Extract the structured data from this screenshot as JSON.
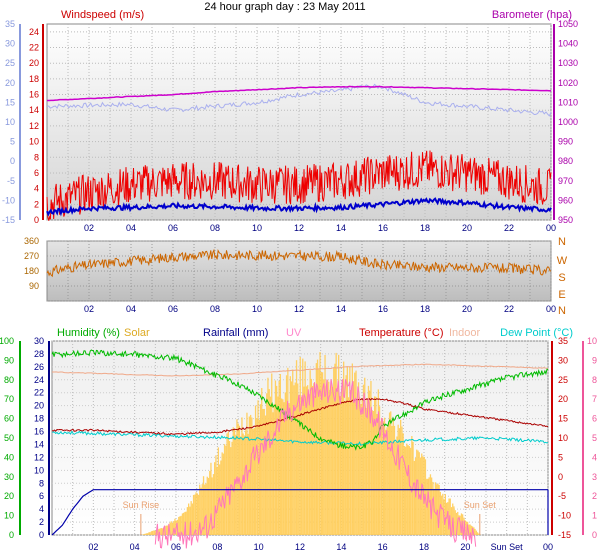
{
  "title": "24 hour graph day : 23 May 2011",
  "chart_data": [
    {
      "panel": "wind-pressure",
      "type": "line",
      "x_tick_labels": [
        "02",
        "04",
        "06",
        "08",
        "10",
        "12",
        "14",
        "16",
        "18",
        "20",
        "22",
        "00"
      ],
      "axes": {
        "left_inner": {
          "label": "Windspeed (m/s)",
          "ticks": [
            "24",
            "22",
            "20",
            "18",
            "16",
            "14",
            "12",
            "10",
            "8",
            "6",
            "4",
            "2",
            "0"
          ],
          "range": [
            0,
            25
          ],
          "color": "#cc0000"
        },
        "left_outer": {
          "ticks": [
            "35",
            "30",
            "25",
            "20",
            "15",
            "10",
            "5",
            "0",
            "-5",
            "-10",
            "-15"
          ],
          "range": [
            -15,
            35
          ],
          "color": "#8899dd"
        },
        "right": {
          "label": "Barometer (hpa)",
          "ticks": [
            "1050",
            "1040",
            "1030",
            "1020",
            "1010",
            "1000",
            "990",
            "980",
            "970",
            "960",
            "950"
          ],
          "range": [
            950,
            1050
          ],
          "color": "#aa00aa"
        }
      },
      "series": [
        {
          "role": "windspeed-gust",
          "color": "#ee0000",
          "points": [
            [
              0,
              2
            ],
            [
              2,
              3.5
            ],
            [
              4,
              4.5
            ],
            [
              6,
              5
            ],
            [
              8,
              5
            ],
            [
              10,
              4.5
            ],
            [
              12,
              4.5
            ],
            [
              14,
              5
            ],
            [
              16,
              6
            ],
            [
              18,
              6.5
            ],
            [
              20,
              6
            ],
            [
              22,
              5
            ],
            [
              24,
              4
            ]
          ]
        },
        {
          "role": "windspeed-average",
          "color": "#0000cc",
          "points": [
            [
              0,
              1
            ],
            [
              2,
              1.5
            ],
            [
              4,
              1.6
            ],
            [
              6,
              1.8
            ],
            [
              8,
              1.7
            ],
            [
              10,
              1.5
            ],
            [
              12,
              1.5
            ],
            [
              14,
              1.6
            ],
            [
              16,
              2
            ],
            [
              18,
              2.5
            ],
            [
              20,
              2.2
            ],
            [
              22,
              1.6
            ],
            [
              24,
              1.3
            ]
          ]
        },
        {
          "role": "barometer",
          "color": "#cc00cc",
          "points": [
            [
              0,
              1011
            ],
            [
              2,
              1012
            ],
            [
              4,
              1013
            ],
            [
              6,
              1014
            ],
            [
              8,
              1015.5
            ],
            [
              10,
              1016.5
            ],
            [
              12,
              1017.5
            ],
            [
              14,
              1018
            ],
            [
              16,
              1018
            ],
            [
              18,
              1017.5
            ],
            [
              20,
              1017
            ],
            [
              22,
              1016.5
            ],
            [
              24,
              1016
            ]
          ]
        },
        {
          "role": "temperature-outer-scale",
          "color": "#aab0ee",
          "points": [
            [
              0,
              14
            ],
            [
              4,
              14.5
            ],
            [
              6,
              13
            ],
            [
              8,
              14
            ],
            [
              10,
              15
            ],
            [
              11,
              16
            ],
            [
              12,
              17
            ],
            [
              14,
              18
            ],
            [
              15,
              19
            ],
            [
              16,
              19
            ],
            [
              17,
              17
            ],
            [
              18,
              15
            ],
            [
              20,
              14
            ],
            [
              22,
              13
            ],
            [
              24,
              12
            ]
          ]
        }
      ]
    },
    {
      "panel": "wind-direction",
      "type": "line",
      "x_tick_labels": [
        "02",
        "04",
        "06",
        "08",
        "10",
        "12",
        "14",
        "16",
        "18",
        "20",
        "22",
        "00"
      ],
      "axes": {
        "left": {
          "ticks": [
            "360",
            "270",
            "180",
            "90",
            "0"
          ],
          "range": [
            0,
            360
          ]
        },
        "right": {
          "ticks": [
            "N",
            "W",
            "S",
            "E",
            "N"
          ]
        }
      },
      "series": [
        {
          "role": "wind-direction",
          "color": "#cc6600",
          "points": [
            [
              0,
              170
            ],
            [
              1,
              200
            ],
            [
              3,
              230
            ],
            [
              5,
              250
            ],
            [
              6,
              265
            ],
            [
              8,
              275
            ],
            [
              10,
              275
            ],
            [
              12,
              270
            ],
            [
              14,
              265
            ],
            [
              15,
              240
            ],
            [
              16,
              215
            ],
            [
              18,
              205
            ],
            [
              20,
              200
            ],
            [
              22,
              195
            ],
            [
              24,
              180
            ]
          ]
        }
      ]
    },
    {
      "panel": "humidity-temperature",
      "type": "line",
      "x_tick_labels": [
        "02",
        "04",
        "06",
        "08",
        "10",
        "12",
        "14",
        "16",
        "18",
        "20",
        "Sun Set",
        "00"
      ],
      "axes": {
        "humidity": {
          "label": "Humidity (%)",
          "ticks": [
            "100",
            "90",
            "80",
            "70",
            "60",
            "50",
            "40",
            "30",
            "20",
            "10",
            "0"
          ],
          "range": [
            0,
            100
          ],
          "color": "#00aa00"
        },
        "rainfall": {
          "label": "Rainfall (mm)",
          "ticks": [
            "30",
            "28",
            "26",
            "24",
            "22",
            "20",
            "18",
            "16",
            "14",
            "12",
            "10",
            "8",
            "6",
            "4",
            "2",
            "0"
          ],
          "range": [
            0,
            30
          ],
          "color": "#000088"
        },
        "temperature": {
          "label": "Temperature (°C)",
          "ticks": [
            "35",
            "30",
            "25",
            "20",
            "15",
            "10",
            "5",
            "0",
            "-5",
            "-10",
            "-15"
          ],
          "range": [
            -15,
            35
          ],
          "color": "#cc0000"
        },
        "uv": {
          "label": "UV",
          "ticks": [
            "10",
            "9",
            "8",
            "7",
            "6",
            "5",
            "4",
            "3",
            "2",
            "1",
            "0"
          ],
          "range": [
            0,
            10
          ],
          "color": "#ee5599"
        }
      },
      "labels": {
        "solar": "Solar",
        "indoor": "Indoor",
        "dew_point": "Dew Point (°C)",
        "sun_rise": "Sun Rise",
        "sun_set": "Sun Set"
      },
      "sun_rise_hour": 4.3,
      "sun_set_hour": 20.7,
      "series": [
        {
          "role": "humidity",
          "color": "#00bb00",
          "points": [
            [
              0,
              93
            ],
            [
              2,
              94
            ],
            [
              4,
              93
            ],
            [
              6,
              91
            ],
            [
              7,
              87
            ],
            [
              8,
              82
            ],
            [
              9,
              78
            ],
            [
              10,
              72
            ],
            [
              11,
              65
            ],
            [
              12,
              57
            ],
            [
              13,
              50
            ],
            [
              14,
              46
            ],
            [
              15,
              45
            ],
            [
              15.5,
              48
            ],
            [
              16,
              56
            ],
            [
              17,
              62
            ],
            [
              18,
              68
            ],
            [
              19,
              72
            ],
            [
              20,
              75
            ],
            [
              21,
              78
            ],
            [
              22,
              81
            ],
            [
              23,
              83
            ],
            [
              24,
              84
            ]
          ]
        },
        {
          "role": "temperature",
          "color": "#aa0000",
          "points": [
            [
              0,
              12
            ],
            [
              2,
              12
            ],
            [
              4,
              11.5
            ],
            [
              6,
              11
            ],
            [
              8,
              11.5
            ],
            [
              10,
              13
            ],
            [
              12,
              16
            ],
            [
              14,
              19
            ],
            [
              15,
              20
            ],
            [
              16,
              20
            ],
            [
              17,
              19
            ],
            [
              18,
              17.5
            ],
            [
              20,
              16
            ],
            [
              22,
              14.5
            ],
            [
              24,
              13
            ]
          ]
        },
        {
          "role": "indoor",
          "color": "#f0a888",
          "points": [
            [
              0,
              27
            ],
            [
              3,
              26.5
            ],
            [
              6,
              26
            ],
            [
              9,
              26.5
            ],
            [
              12,
              27.5
            ],
            [
              15,
              28.5
            ],
            [
              18,
              29
            ],
            [
              21,
              28.5
            ],
            [
              24,
              28
            ]
          ]
        },
        {
          "role": "dew-point",
          "color": "#00cccc",
          "points": [
            [
              0,
              11.5
            ],
            [
              3,
              11
            ],
            [
              6,
              10.5
            ],
            [
              9,
              10
            ],
            [
              12,
              9
            ],
            [
              15,
              8.5
            ],
            [
              18,
              9.5
            ],
            [
              21,
              10
            ],
            [
              24,
              9
            ]
          ]
        },
        {
          "role": "rainfall",
          "color": "#0000aa",
          "points": [
            [
              0,
              0
            ],
            [
              0.5,
              1.5
            ],
            [
              1,
              4
            ],
            [
              1.5,
              6
            ],
            [
              2,
              7
            ],
            [
              6,
              7
            ],
            [
              10,
              7
            ],
            [
              14,
              7
            ],
            [
              18,
              7
            ],
            [
              24,
              7
            ]
          ]
        },
        {
          "role": "uv",
          "color": "#ff77bb",
          "points": [
            [
              5,
              0
            ],
            [
              6.5,
              0
            ],
            [
              7.5,
              0.5
            ],
            [
              8.5,
              2
            ],
            [
              9.5,
              3.5
            ],
            [
              10.5,
              5
            ],
            [
              11.5,
              6.5
            ],
            [
              12.5,
              7.2
            ],
            [
              13.5,
              7.5
            ],
            [
              14.5,
              7.3
            ],
            [
              15.5,
              6.3
            ],
            [
              16.5,
              4.5
            ],
            [
              17.5,
              2.7
            ],
            [
              18.5,
              1.2
            ],
            [
              19.5,
              0.3
            ],
            [
              20.5,
              0
            ]
          ]
        },
        {
          "role": "solar",
          "color": "#ffcc55",
          "points": [
            [
              4.3,
              0
            ],
            [
              5.5,
              0.5
            ],
            [
              6.5,
              1.5
            ],
            [
              7.5,
              3.5
            ],
            [
              8.5,
              5.5
            ],
            [
              9.5,
              7
            ],
            [
              10.5,
              8.3
            ],
            [
              11.5,
              9
            ],
            [
              12.5,
              9.5
            ],
            [
              13.5,
              9.5
            ],
            [
              14.5,
              9
            ],
            [
              15.5,
              8
            ],
            [
              16.5,
              6.5
            ],
            [
              17.5,
              5
            ],
            [
              18.5,
              3
            ],
            [
              19.5,
              1.5
            ],
            [
              20.7,
              0
            ]
          ]
        }
      ]
    }
  ]
}
